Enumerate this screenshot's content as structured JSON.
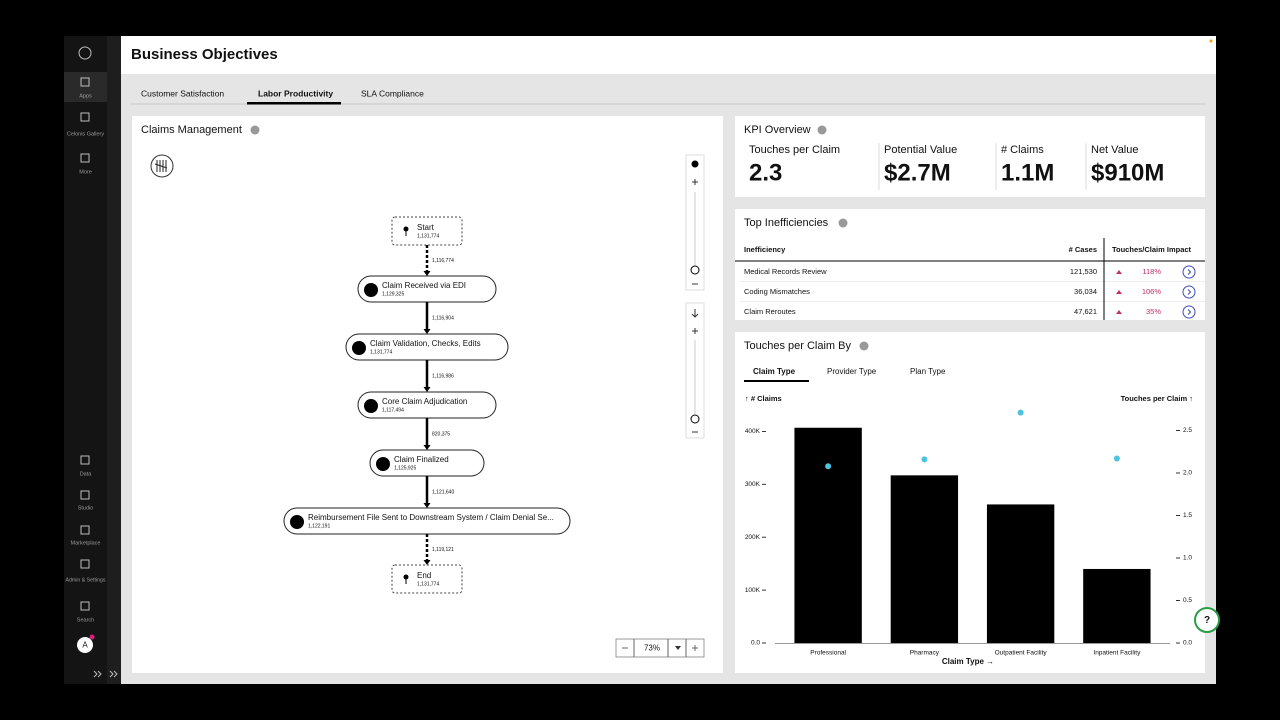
{
  "sidebar": {
    "items": [
      "Apps",
      "Celonis Gallery",
      "More",
      "Data",
      "Studio",
      "Marketplace",
      "Admin & Settings",
      "Search"
    ],
    "avatar": "A"
  },
  "header": {
    "title": "Business Objectives"
  },
  "tabs": [
    "Customer Satisfaction",
    "Labor Productivity",
    "SLA Compliance"
  ],
  "process": {
    "title": "Claims Management",
    "nodes": [
      {
        "label": "Start",
        "count": "1,131,774"
      },
      {
        "label": "Claim Received via EDI",
        "count": "1,129,325"
      },
      {
        "label": "Claim Validation, Checks, Edits",
        "count": "1,131,774"
      },
      {
        "label": "Core Claim Adjudication",
        "count": "1,117,494"
      },
      {
        "label": "Claim Finalized",
        "count": "1,125,925"
      },
      {
        "label": "Reimbursement File Sent to Downstream System / Claim Denial Se...",
        "count": "1,122,191"
      },
      {
        "label": "End",
        "count": "1,131,774"
      }
    ],
    "edges": [
      "1,116,774",
      "1,116,904",
      "1,116,986",
      "820,375",
      "1,121,640",
      "1,119,121"
    ],
    "zoom": "73%"
  },
  "kpi": {
    "title": "KPI Overview",
    "items": [
      {
        "label": "Touches per Claim",
        "value": "2.3"
      },
      {
        "label": "Potential Value",
        "value": "$2.7M"
      },
      {
        "label": "# Claims",
        "value": "1.1M"
      },
      {
        "label": "Net Value",
        "value": "$910M"
      }
    ]
  },
  "inefficiencies": {
    "title": "Top Inefficiencies",
    "columns": [
      "Inefficiency",
      "# Cases",
      "Touches/Claim Impact"
    ],
    "rows": [
      [
        "Medical Records Review",
        "121,530",
        "118%"
      ],
      [
        "Coding Mismatches",
        "36,034",
        "106%"
      ],
      [
        "Claim Reroutes",
        "47,621",
        "35%"
      ]
    ]
  },
  "touches": {
    "title": "Touches per Claim By",
    "tabs": [
      "Claim Type",
      "Provider Type",
      "Plan Type"
    ],
    "help": "?"
  },
  "chart_data": {
    "type": "bar",
    "y_label": "↑ # Claims",
    "y2_label": "Touches per Claim ↑",
    "x_label": "Claim Type →",
    "categories": [
      "Professional",
      "Pharmacy",
      "Outpatient Facility",
      "Inpatient Facility"
    ],
    "series": [
      {
        "color": "#000000",
        "values": [
          407000,
          317000,
          262000,
          140000
        ]
      },
      {
        "color": "#4ec3e0",
        "axis": "y2",
        "type": "scatter",
        "values": [
          2.08,
          2.16,
          2.71,
          2.17
        ]
      }
    ],
    "ylim": [
      0,
      450000
    ],
    "yticks": [
      {
        "value": 0,
        "label": "0.0"
      },
      {
        "value": 100000,
        "label": "100K"
      },
      {
        "value": 200000,
        "label": "200K"
      },
      {
        "value": 300000,
        "label": "300K"
      },
      {
        "value": 400000,
        "label": "400K"
      }
    ],
    "y2lim": [
      0,
      2.8
    ],
    "y2ticks": [
      {
        "value": 0,
        "label": "0.0"
      },
      0.5,
      {
        "value": 1,
        "label": "1.0"
      },
      1.5,
      {
        "value": 2,
        "label": "2.0"
      },
      2.5
    ]
  }
}
